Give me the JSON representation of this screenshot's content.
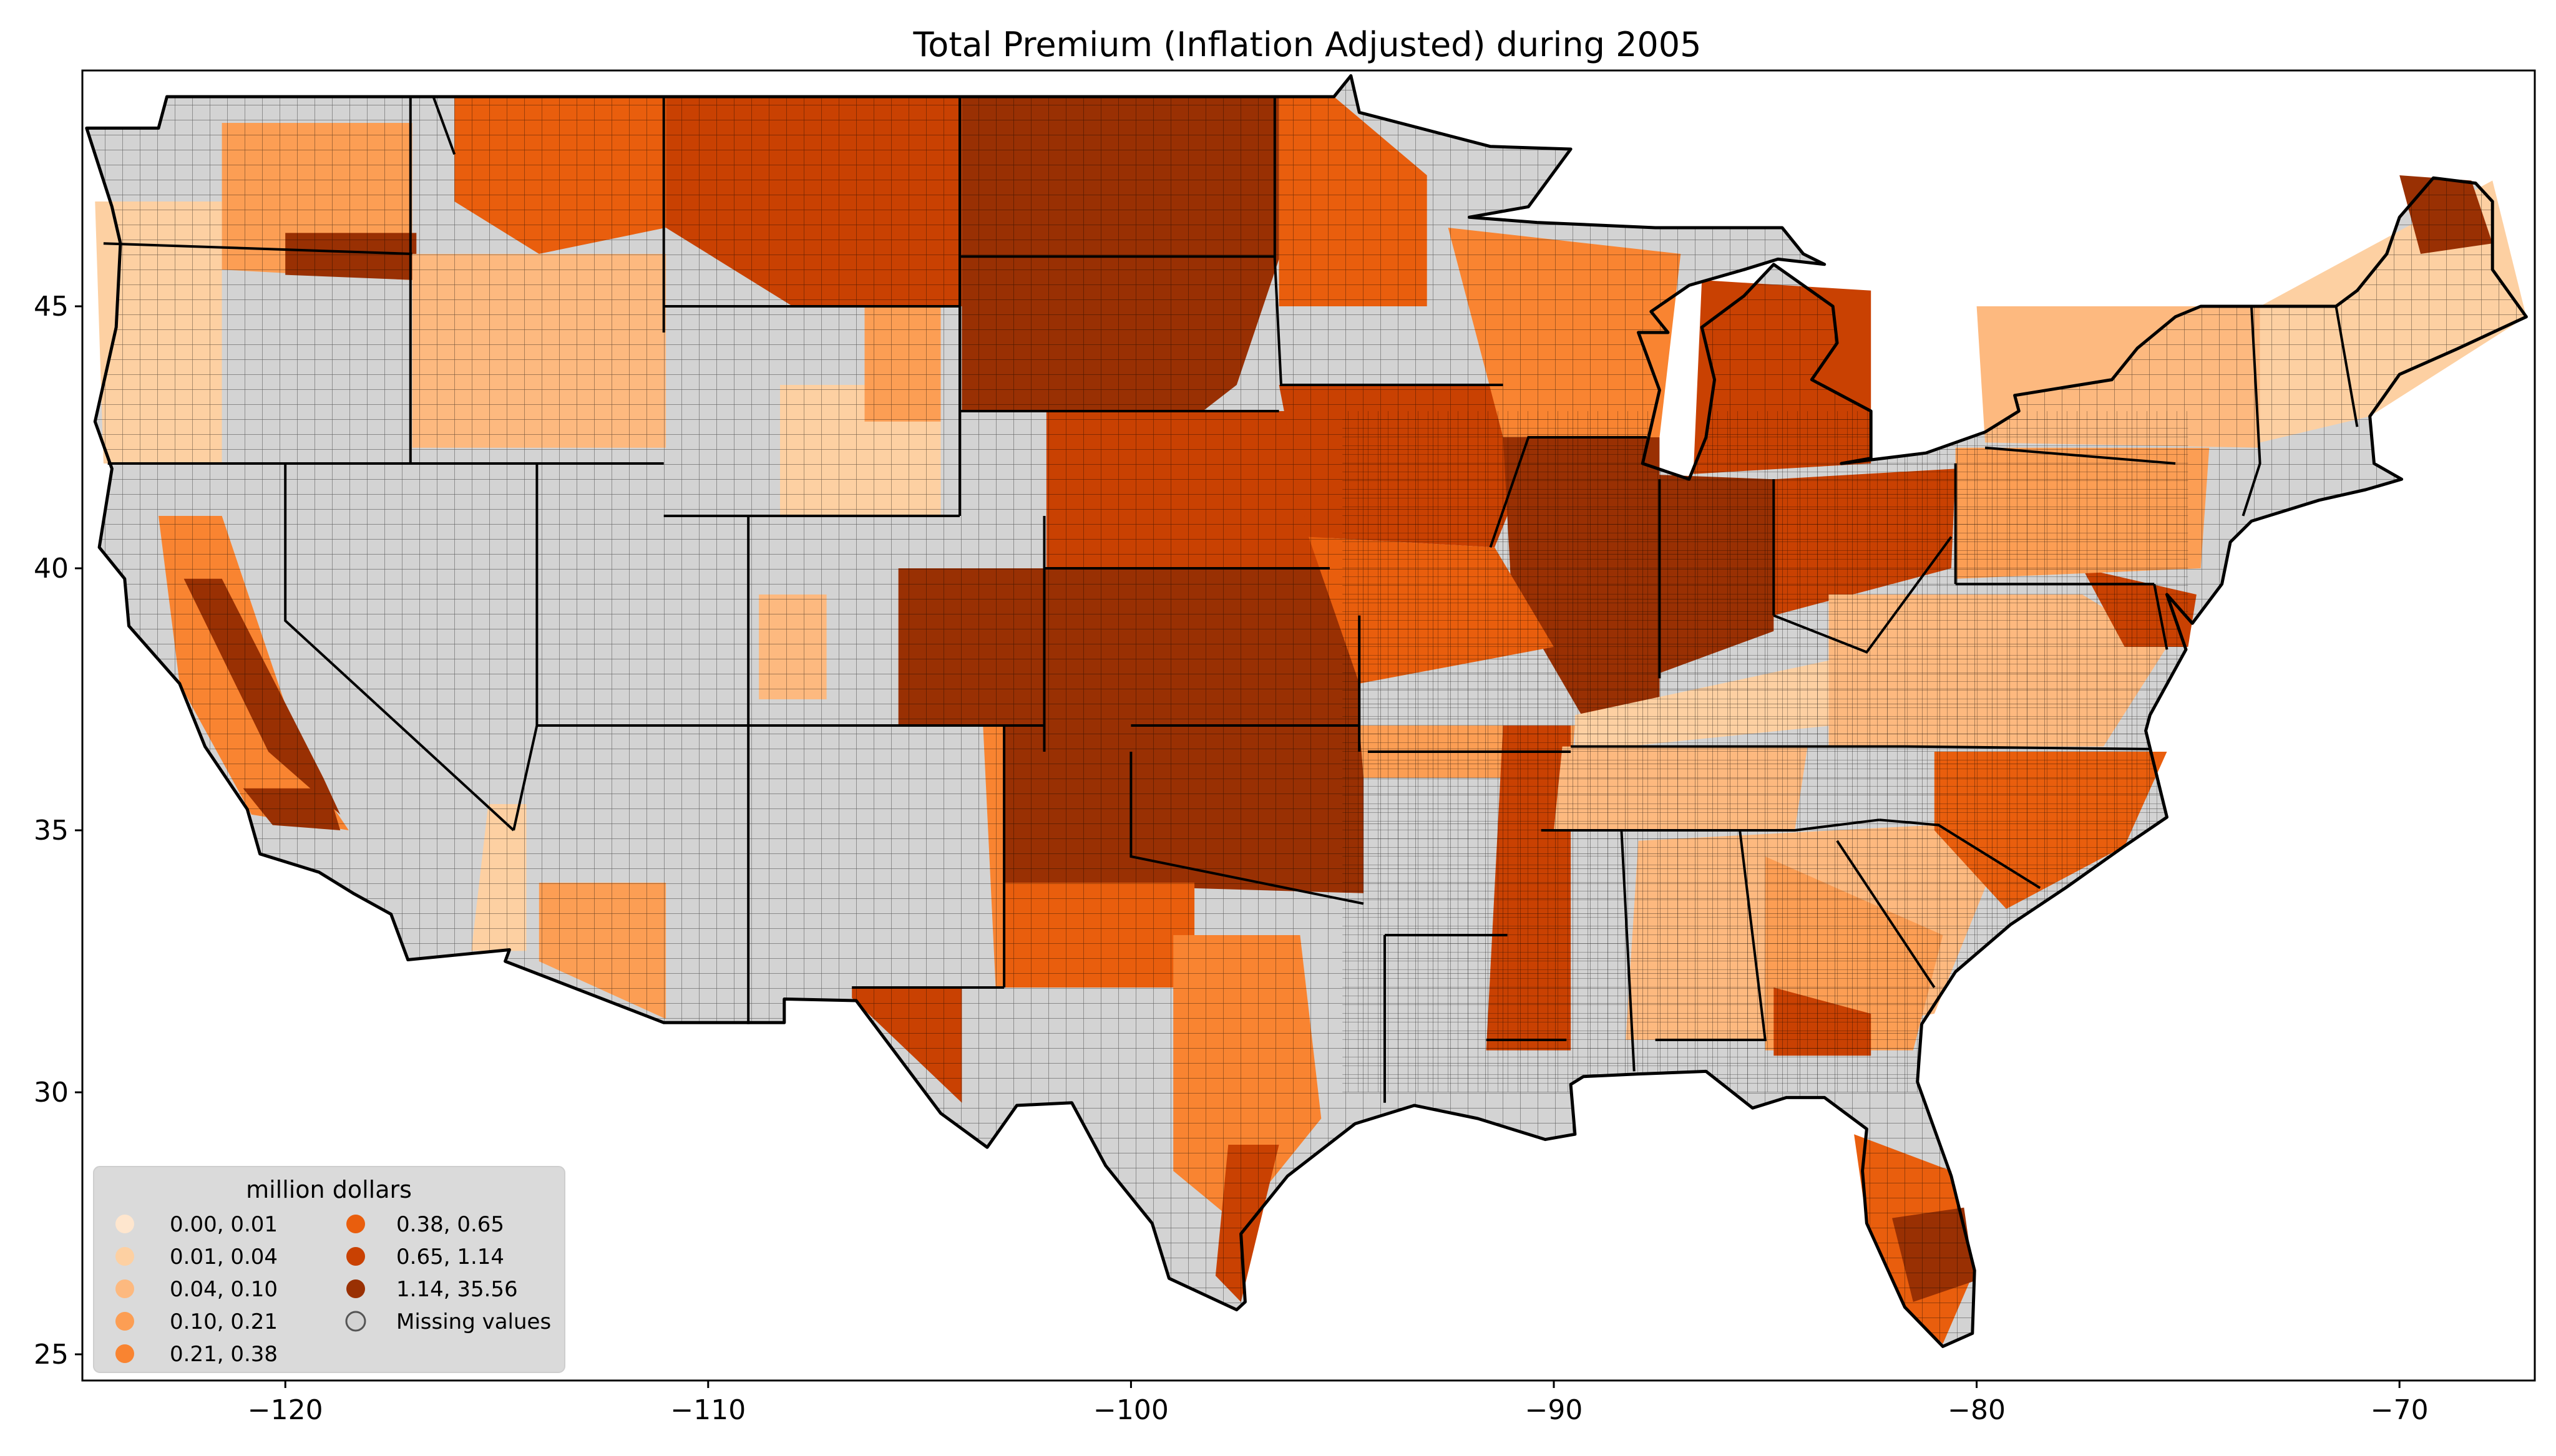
{
  "title": "Total  Premium  (Inflation Adjusted) during 2005",
  "axes": {
    "x_ticks": [
      {
        "value": -120,
        "label": "−120"
      },
      {
        "value": -110,
        "label": "−110"
      },
      {
        "value": -100,
        "label": "−100"
      },
      {
        "value": -90,
        "label": "−90"
      },
      {
        "value": -80,
        "label": "−80"
      },
      {
        "value": -70,
        "label": "−70"
      }
    ],
    "y_ticks": [
      {
        "value": 45,
        "label": "45"
      },
      {
        "value": 40,
        "label": "40"
      },
      {
        "value": 35,
        "label": "35"
      },
      {
        "value": 30,
        "label": "30"
      },
      {
        "value": 25,
        "label": "25"
      }
    ],
    "xlim": [
      -124.8,
      -66.8
    ],
    "ylim": [
      24.5,
      49.5
    ]
  },
  "legend": {
    "title": "million dollars",
    "placement": "bottom-left",
    "entries": [
      {
        "label": "0.00,  0.01",
        "color": "#fee6ce"
      },
      {
        "label": "0.01,  0.04",
        "color": "#fdd0a2"
      },
      {
        "label": "0.04,  0.10",
        "color": "#fdb97f"
      },
      {
        "label": "0.10,  0.21",
        "color": "#fc9e54"
      },
      {
        "label": "0.21,  0.38",
        "color": "#f98431"
      },
      {
        "label": "0.38,  0.65",
        "color": "#e95e0d"
      },
      {
        "label": "0.65,  1.14",
        "color": "#c94102"
      },
      {
        "label": "1.14, 35.56",
        "color": "#993003"
      },
      {
        "label": "Missing values",
        "color": "#d3d3d3"
      }
    ]
  },
  "colors": {
    "missing": "#d3d3d3",
    "border": "#000000",
    "legend_bg": "#d9d9d9"
  }
}
